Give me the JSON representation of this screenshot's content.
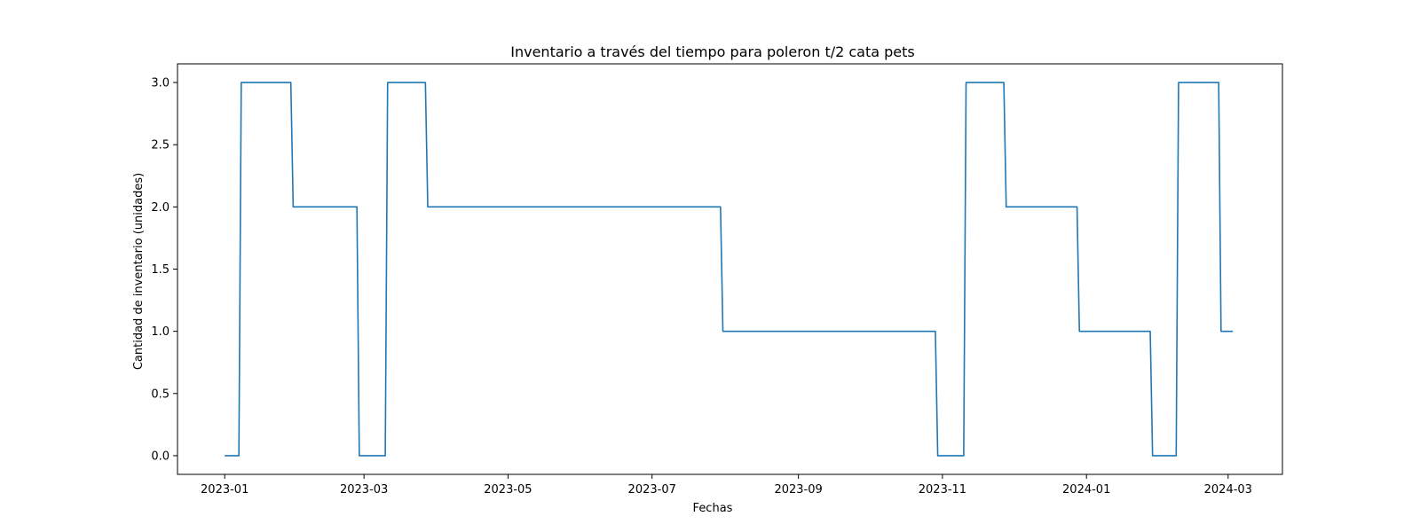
{
  "chart_data": {
    "type": "line",
    "title": "Inventario a través del tiempo para poleron t/2 cata pets",
    "xlabel": "Fechas",
    "ylabel": "Cantidad de inventario (unidades)",
    "x_axis_type": "date",
    "xlim": [
      "2022-12-12",
      "2024-03-24"
    ],
    "ylim": [
      -0.15,
      3.15
    ],
    "x_ticks": [
      {
        "value": "2023-01-01",
        "label": "2023-01"
      },
      {
        "value": "2023-03-01",
        "label": "2023-03"
      },
      {
        "value": "2023-05-01",
        "label": "2023-05"
      },
      {
        "value": "2023-07-01",
        "label": "2023-07"
      },
      {
        "value": "2023-09-01",
        "label": "2023-09"
      },
      {
        "value": "2023-11-01",
        "label": "2023-11"
      },
      {
        "value": "2024-01-01",
        "label": "2024-01"
      },
      {
        "value": "2024-03-01",
        "label": "2024-03"
      }
    ],
    "y_ticks": [
      {
        "value": 0.0,
        "label": "0.0"
      },
      {
        "value": 0.5,
        "label": "0.5"
      },
      {
        "value": 1.0,
        "label": "1.0"
      },
      {
        "value": 1.5,
        "label": "1.5"
      },
      {
        "value": 2.0,
        "label": "2.0"
      },
      {
        "value": 2.5,
        "label": "2.5"
      },
      {
        "value": 3.0,
        "label": "3.0"
      }
    ],
    "grid": false,
    "series": [
      {
        "color": "#1f77b4",
        "points": [
          [
            "2023-01-01",
            0
          ],
          [
            "2023-01-07",
            0
          ],
          [
            "2023-01-08",
            3
          ],
          [
            "2023-01-29",
            3
          ],
          [
            "2023-01-30",
            2
          ],
          [
            "2023-02-26",
            2
          ],
          [
            "2023-02-27",
            0
          ],
          [
            "2023-03-10",
            0
          ],
          [
            "2023-03-11",
            3
          ],
          [
            "2023-03-27",
            3
          ],
          [
            "2023-03-28",
            2
          ],
          [
            "2023-07-30",
            2
          ],
          [
            "2023-07-31",
            1
          ],
          [
            "2023-10-29",
            1
          ],
          [
            "2023-10-30",
            0
          ],
          [
            "2023-11-10",
            0
          ],
          [
            "2023-11-11",
            3
          ],
          [
            "2023-11-27",
            3
          ],
          [
            "2023-11-28",
            2
          ],
          [
            "2023-12-28",
            2
          ],
          [
            "2023-12-29",
            1
          ],
          [
            "2024-01-28",
            1
          ],
          [
            "2024-01-29",
            0
          ],
          [
            "2024-02-08",
            0
          ],
          [
            "2024-02-09",
            3
          ],
          [
            "2024-02-26",
            3
          ],
          [
            "2024-02-27",
            1
          ],
          [
            "2024-03-03",
            1
          ]
        ]
      }
    ]
  }
}
